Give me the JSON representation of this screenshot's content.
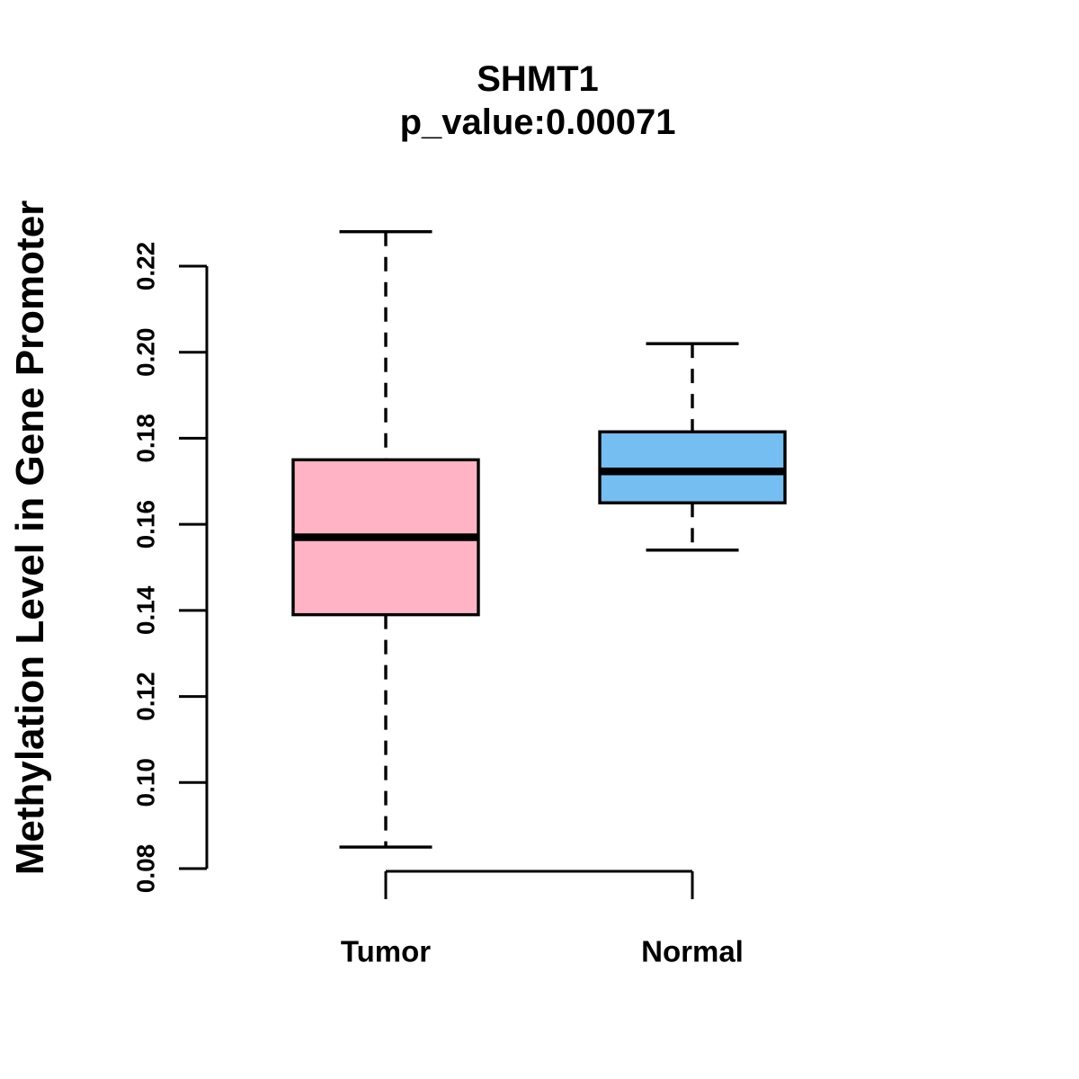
{
  "chart_data": {
    "type": "boxplot",
    "title": "SHMT1",
    "subtitle": "p_value:0.00071",
    "p_value": "0.00071",
    "ylabel": "Methylation Level in Gene Promoter",
    "xlabel": "",
    "ylim": [
      0.08,
      0.22
    ],
    "y_ticks": [
      0.08,
      0.1,
      0.12,
      0.14,
      0.16,
      0.18,
      0.2,
      0.22
    ],
    "y_tick_labels": [
      "0.08",
      "0.10",
      "0.12",
      "0.14",
      "0.16",
      "0.18",
      "0.20",
      "0.22"
    ],
    "categories": [
      "Tumor",
      "Normal"
    ],
    "grid": "off",
    "legend": "none",
    "series": [
      {
        "name": "Tumor",
        "whisker_low": 0.085,
        "q1": 0.139,
        "median": 0.157,
        "q3": 0.175,
        "whisker_high": 0.228,
        "fill_color": "#FFB3C5"
      },
      {
        "name": "Normal",
        "whisker_low": 0.154,
        "q1": 0.165,
        "median": 0.1723,
        "q3": 0.1815,
        "whisker_high": 0.202,
        "fill_color": "#75BEF2"
      }
    ],
    "colors": {
      "axis": "#000000",
      "box_border": "#000000",
      "median_line": "#000000",
      "background": "#FFFFFF",
      "tumor_fill": "#FFB3C5",
      "normal_fill": "#75BEF2"
    }
  }
}
